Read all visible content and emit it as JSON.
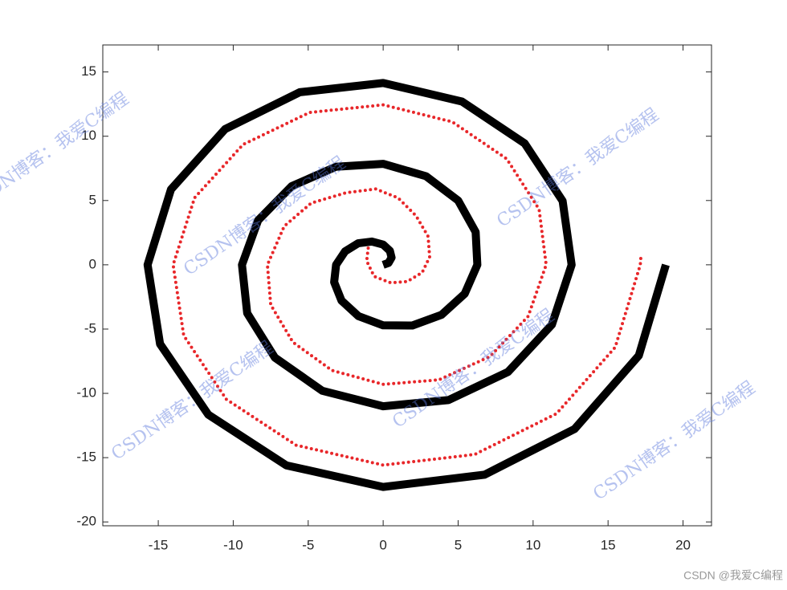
{
  "chart_data": {
    "type": "line",
    "xlim": [
      -18.7,
      21.9
    ],
    "ylim": [
      -20.3,
      17.1
    ],
    "xticks": [
      -15,
      -10,
      -5,
      0,
      5,
      10,
      15,
      20
    ],
    "yticks": [
      -20,
      -15,
      -10,
      -5,
      0,
      5,
      10,
      15
    ],
    "series": [
      {
        "color": "#000000",
        "style": "solid",
        "x": [
          0,
          0.36,
          0.56,
          0.45,
          0,
          -0.75,
          -1.67,
          -2.54,
          -3.14,
          -3.27,
          -2.78,
          -1.65,
          0,
          1.95,
          3.89,
          5.44,
          6.28,
          6.17,
          5.0,
          2.86,
          0,
          -3.16,
          -6.11,
          -8.34,
          -9.42,
          -9.07,
          -7.22,
          -4.06,
          0,
          4.36,
          8.33,
          11.25,
          12.57,
          11.97,
          9.44,
          5.26,
          0,
          -5.56,
          -10.55,
          -14.15,
          -15.71,
          -14.88,
          -11.66,
          -6.46,
          0,
          6.76,
          12.77,
          17.05,
          18.85
        ],
        "y": [
          0,
          0.15,
          0.56,
          1.09,
          1.57,
          1.81,
          1.67,
          1.05,
          0,
          -1.35,
          -2.78,
          -3.99,
          -4.71,
          -4.72,
          -3.89,
          -2.25,
          0,
          2.55,
          5.0,
          6.89,
          7.85,
          7.62,
          6.11,
          3.46,
          0,
          -3.76,
          -7.22,
          -9.8,
          -11.0,
          -10.52,
          -8.33,
          -4.66,
          0,
          4.96,
          9.44,
          12.7,
          14.14,
          13.42,
          10.55,
          5.86,
          0,
          -6.16,
          -11.66,
          -15.6,
          -17.28,
          -16.33,
          -12.77,
          -7.06,
          0
        ]
      },
      {
        "color": "#e8272a",
        "style": "dotted",
        "x": [
          -1,
          -1.1,
          -0.6,
          0.5,
          1.6,
          2.6,
          3.1,
          3.0,
          2.2,
          1.0,
          -0.5,
          -2.5,
          -4.8,
          -6.6,
          -7.72,
          -7.5,
          -6.02,
          -3.41,
          0,
          3.71,
          7.13,
          9.67,
          10.87,
          10.4,
          8.24,
          4.61,
          0,
          -4.91,
          -9.35,
          -12.58,
          -14.01,
          -13.3,
          -10.46,
          -5.81,
          0,
          6.11,
          11.57,
          15.48,
          17.15,
          17.2
        ],
        "y": [
          1.3,
          0.3,
          -0.9,
          -1.4,
          -1.3,
          -0.6,
          0.6,
          2.2,
          3.8,
          5.2,
          5.9,
          5.6,
          4.8,
          3.0,
          0,
          -3.11,
          -6.02,
          -8.22,
          -9.3,
          -8.95,
          -7.13,
          -4.01,
          0,
          4.31,
          8.24,
          11.12,
          12.44,
          11.85,
          9.35,
          5.21,
          0,
          -5.51,
          -10.46,
          -14.03,
          -15.58,
          -14.75,
          -11.57,
          -6.41,
          0,
          0.8
        ]
      }
    ],
    "watermark": "CSDN博客：我爱C编程",
    "credit": "CSDN @我爱C编程"
  }
}
